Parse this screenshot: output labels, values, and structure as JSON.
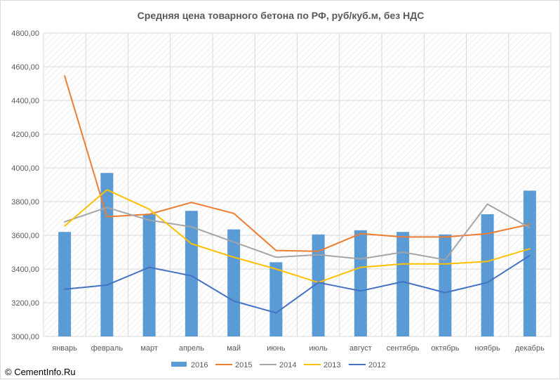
{
  "copyright": "© CementInfo.Ru",
  "colors": {
    "2016": "#5b9bd5",
    "2015": "#ed7d31",
    "2014": "#a5a5a5",
    "2013": "#ffc000",
    "2012": "#4472c4",
    "grid": "#d9d9d9",
    "hatch": "#e7e7e7"
  },
  "chart_data": {
    "type": "bar",
    "title": "Средняя цена товарного бетона по РФ, руб/куб.м, без НДС",
    "categories": [
      "январь",
      "февраль",
      "март",
      "апрель",
      "май",
      "июнь",
      "июль",
      "август",
      "сентябрь",
      "октябрь",
      "ноябрь",
      "декабрь"
    ],
    "ylim": [
      3000,
      4800
    ],
    "yticks": [
      3000,
      3200,
      3400,
      3600,
      3800,
      4000,
      4200,
      4400,
      4600,
      4800
    ],
    "ytick_labels": [
      "3000,00",
      "3200,00",
      "3400,00",
      "3600,00",
      "3800,00",
      "4000,00",
      "4200,00",
      "4400,00",
      "4600,00",
      "4800,00"
    ],
    "grid": true,
    "legend_position": "bottom",
    "series": [
      {
        "name": "2016",
        "kind": "bar",
        "values": [
          3620,
          3970,
          3725,
          3745,
          3635,
          3440,
          3605,
          3630,
          3620,
          3605,
          3725,
          3865
        ]
      },
      {
        "name": "2015",
        "kind": "line",
        "values": [
          4545,
          3710,
          3725,
          3795,
          3730,
          3510,
          3505,
          3610,
          3590,
          3590,
          3610,
          3665
        ]
      },
      {
        "name": "2014",
        "kind": "line",
        "values": [
          3680,
          3765,
          3690,
          3650,
          3560,
          3470,
          3485,
          3460,
          3500,
          3455,
          3785,
          3645
        ]
      },
      {
        "name": "2013",
        "kind": "line",
        "values": [
          3655,
          3870,
          3755,
          3550,
          3470,
          3400,
          3320,
          3410,
          3430,
          3430,
          3445,
          3520
        ]
      },
      {
        "name": "2012",
        "kind": "line",
        "values": [
          3280,
          3305,
          3410,
          3360,
          3210,
          3140,
          3320,
          3270,
          3325,
          3260,
          3320,
          3480
        ]
      }
    ]
  }
}
